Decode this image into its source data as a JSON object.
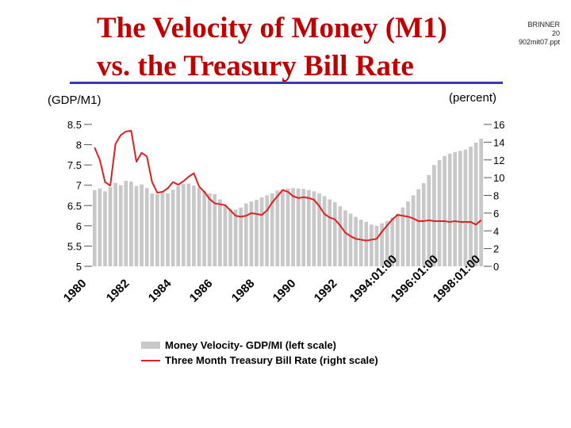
{
  "page": {
    "title_line1": "The Velocity of Money (M1)",
    "title_line2": "vs. the Treasury Bill Rate",
    "corner_line1": "BRINNER",
    "corner_line2": "20",
    "corner_line3": "902mit07.ppt",
    "left_unit": "(GDP/M1)",
    "right_unit": "(percent)"
  },
  "colors": {
    "title": "#c00000",
    "rule": "#3b3bb0",
    "bars": "#c8c8c8",
    "line": "#e02020"
  },
  "chart_data": {
    "type": "bar",
    "title": "The Velocity of Money (M1) vs. the Treasury Bill Rate",
    "ylabel": "(GDP/M1)",
    "y2label": "(percent)",
    "ylim": [
      5,
      8.5
    ],
    "y2lim": [
      0,
      16
    ],
    "y_ticks": [
      "5",
      "5.5",
      "6",
      "6.5",
      "7",
      "7.5",
      "8",
      "8.5"
    ],
    "y2_ticks": [
      "0",
      "2",
      "4",
      "6",
      "8",
      "10",
      "12",
      "14",
      "16"
    ],
    "x_tick_labels": [
      "1980",
      "1982",
      "1984",
      "1986",
      "1988",
      "1990",
      "1992",
      "1994:01:00",
      "1996:01:00",
      "1998:01:00"
    ],
    "legend": [
      "Money Velocity- GDP/MI (left scale)",
      "Three Month Treasury Bill Rate (right scale)"
    ],
    "legend_position": "bottom",
    "series": [
      {
        "name": "Money Velocity- GDP/MI (left scale)",
        "kind": "bar",
        "axis": "left",
        "values": [
          6.88,
          6.92,
          6.85,
          6.95,
          7.06,
          7.0,
          7.11,
          7.09,
          6.98,
          7.02,
          6.93,
          6.8,
          6.78,
          6.83,
          6.8,
          6.89,
          6.98,
          7.03,
          7.04,
          6.99,
          6.94,
          6.87,
          6.8,
          6.78,
          6.65,
          6.5,
          6.42,
          6.4,
          6.45,
          6.55,
          6.6,
          6.64,
          6.7,
          6.75,
          6.8,
          6.87,
          6.9,
          6.92,
          6.93,
          6.92,
          6.91,
          6.88,
          6.85,
          6.8,
          6.73,
          6.65,
          6.58,
          6.48,
          6.38,
          6.3,
          6.22,
          6.15,
          6.1,
          6.03,
          6.0,
          6.06,
          6.12,
          6.2,
          6.3,
          6.45,
          6.6,
          6.75,
          6.9,
          7.05,
          7.25,
          7.5,
          7.62,
          7.72,
          7.78,
          7.82,
          7.85,
          7.88,
          7.95,
          8.05,
          8.15
        ]
      },
      {
        "name": "Three Month Treasury Bill Rate (right scale)",
        "kind": "line",
        "axis": "right",
        "values": [
          13.4,
          12.0,
          9.5,
          9.1,
          13.8,
          14.8,
          15.2,
          15.3,
          11.8,
          12.8,
          12.4,
          9.5,
          8.3,
          8.4,
          8.8,
          9.5,
          9.2,
          9.6,
          10.1,
          10.5,
          9.0,
          8.4,
          7.6,
          7.1,
          7.0,
          6.9,
          6.3,
          5.7,
          5.6,
          5.7,
          6.0,
          5.9,
          5.8,
          6.3,
          7.2,
          7.9,
          8.6,
          8.4,
          7.9,
          7.7,
          7.8,
          7.7,
          7.5,
          6.8,
          5.9,
          5.5,
          5.3,
          4.6,
          3.8,
          3.4,
          3.1,
          3.0,
          2.9,
          3.0,
          3.1,
          3.9,
          4.6,
          5.3,
          5.8,
          5.7,
          5.6,
          5.4,
          5.1,
          5.1,
          5.2,
          5.1,
          5.1,
          5.1,
          5.0,
          5.1,
          5.0,
          5.0,
          5.0,
          4.7,
          5.2
        ]
      }
    ]
  }
}
